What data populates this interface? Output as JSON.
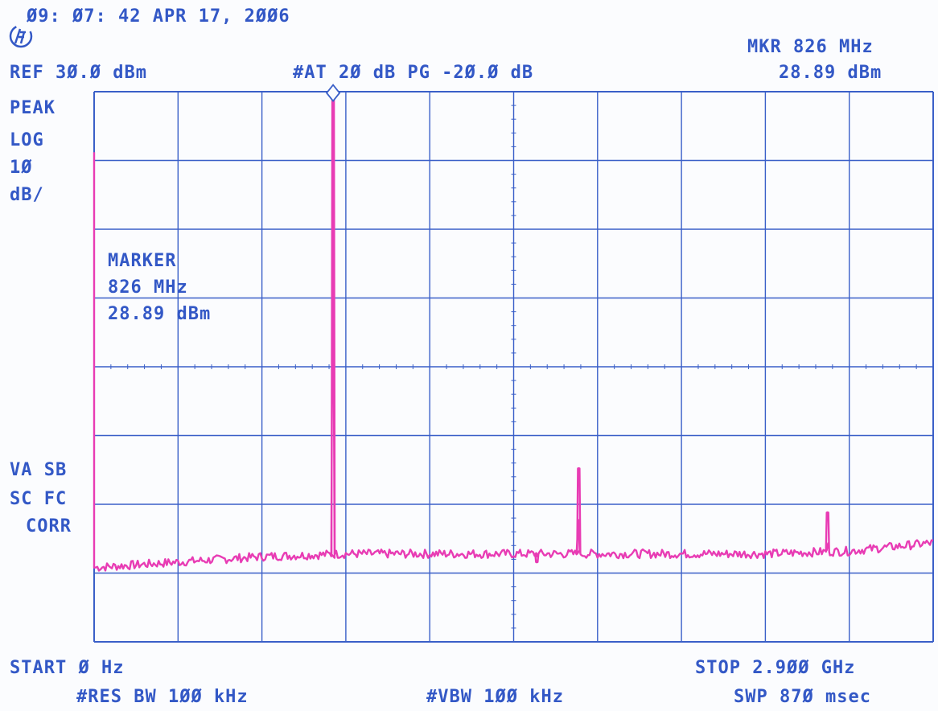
{
  "header": {
    "timestamp": "Ø9: Ø7: 42 APR 17, 2ØØ6",
    "ref_level": "REF 3Ø.Ø dBm",
    "attenuation": "#AT 2Ø dB PG -2Ø.Ø dB",
    "marker_freq": "MKR 826 MHz",
    "marker_level": "28.89 dBm"
  },
  "left_panel": {
    "detector": "PEAK",
    "scale_type": "LOG",
    "scale_value": "1Ø",
    "scale_unit": "dB/",
    "flags_1": "VA SB",
    "flags_2": "SC FC",
    "flags_3": "CORR"
  },
  "marker_box": {
    "title": "MARKER",
    "freq": "826 MHz",
    "level": "28.89 dBm"
  },
  "footer": {
    "start": "START Ø Hz",
    "stop": "STOP 2.9ØØ GHz",
    "rbw": "#RES BW 1ØØ kHz",
    "vbw": "#VBW 1ØØ kHz",
    "sweep": "SWP 87Ø msec"
  },
  "colors": {
    "grid": "#3a5fc8",
    "trace": "#e83cb4",
    "text": "#3358c6"
  },
  "icons": {
    "logo": "hp-logo-icon",
    "marker": "diamond-marker-icon"
  },
  "chart_data": {
    "type": "line",
    "xlim": [
      0,
      2900
    ],
    "ylim": [
      -70,
      30
    ],
    "x_unit": "MHz",
    "y_unit": "dBm",
    "grid": true,
    "noise_floor": [
      [
        0,
        -56.5
      ],
      [
        290,
        -55.5
      ],
      [
        580,
        -54.5
      ],
      [
        870,
        -54
      ],
      [
        1160,
        -54
      ],
      [
        1450,
        -54
      ],
      [
        1740,
        -54
      ],
      [
        2030,
        -54
      ],
      [
        2320,
        -54
      ],
      [
        2610,
        -53.5
      ],
      [
        2900,
        -52
      ]
    ],
    "spurs": [
      {
        "x": 826,
        "y": 28.89
      },
      {
        "x": 1530,
        "y": -55.5
      },
      {
        "x": 1675,
        "y": -38.5
      },
      {
        "x": 2535,
        "y": -46.5
      }
    ],
    "start_level": 19
  }
}
